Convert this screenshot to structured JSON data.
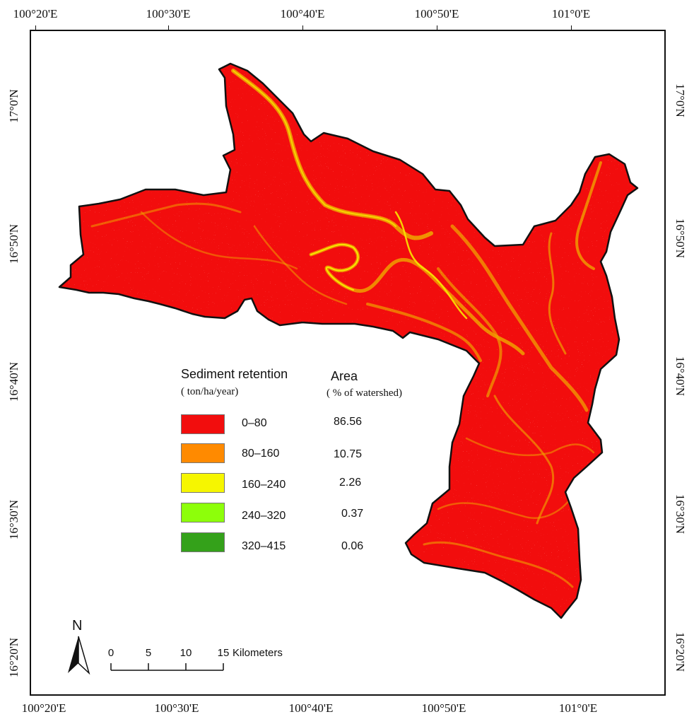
{
  "map": {
    "legend": {
      "title": "Sediment retention",
      "unit": "( ton/ha/year)",
      "area_title": "Area",
      "area_unit": "( % of watershed)",
      "classes": [
        {
          "range": "0–80",
          "area": "86.56",
          "color": "#f20d0d"
        },
        {
          "range": "80–160",
          "area": "10.75",
          "color": "#ff8a00"
        },
        {
          "range": "160–240",
          "area": "2.26",
          "color": "#f6f600"
        },
        {
          "range": "240–320",
          "area": "0.37",
          "color": "#8dff0a"
        },
        {
          "range": "320–415",
          "area": "0.06",
          "color": "#34a11a"
        }
      ]
    },
    "longitude_labels": [
      "100°20'E",
      "100°30'E",
      "100°40'E",
      "100°50'E",
      "101°0'E"
    ],
    "latitude_labels": [
      "17°0'N",
      "16°50'N",
      "16°40'N",
      "16°30'N",
      "16°20'N"
    ],
    "north_arrow": {
      "label": "N",
      "icon": "north-arrow-icon"
    },
    "scale_bar": {
      "ticks": [
        "0",
        "5",
        "10",
        "15"
      ],
      "unit": "Kilometers"
    },
    "colors": {
      "watershed_fill": "#f20d0d",
      "boundary": "#111111",
      "ridges": "#f0a000"
    }
  }
}
